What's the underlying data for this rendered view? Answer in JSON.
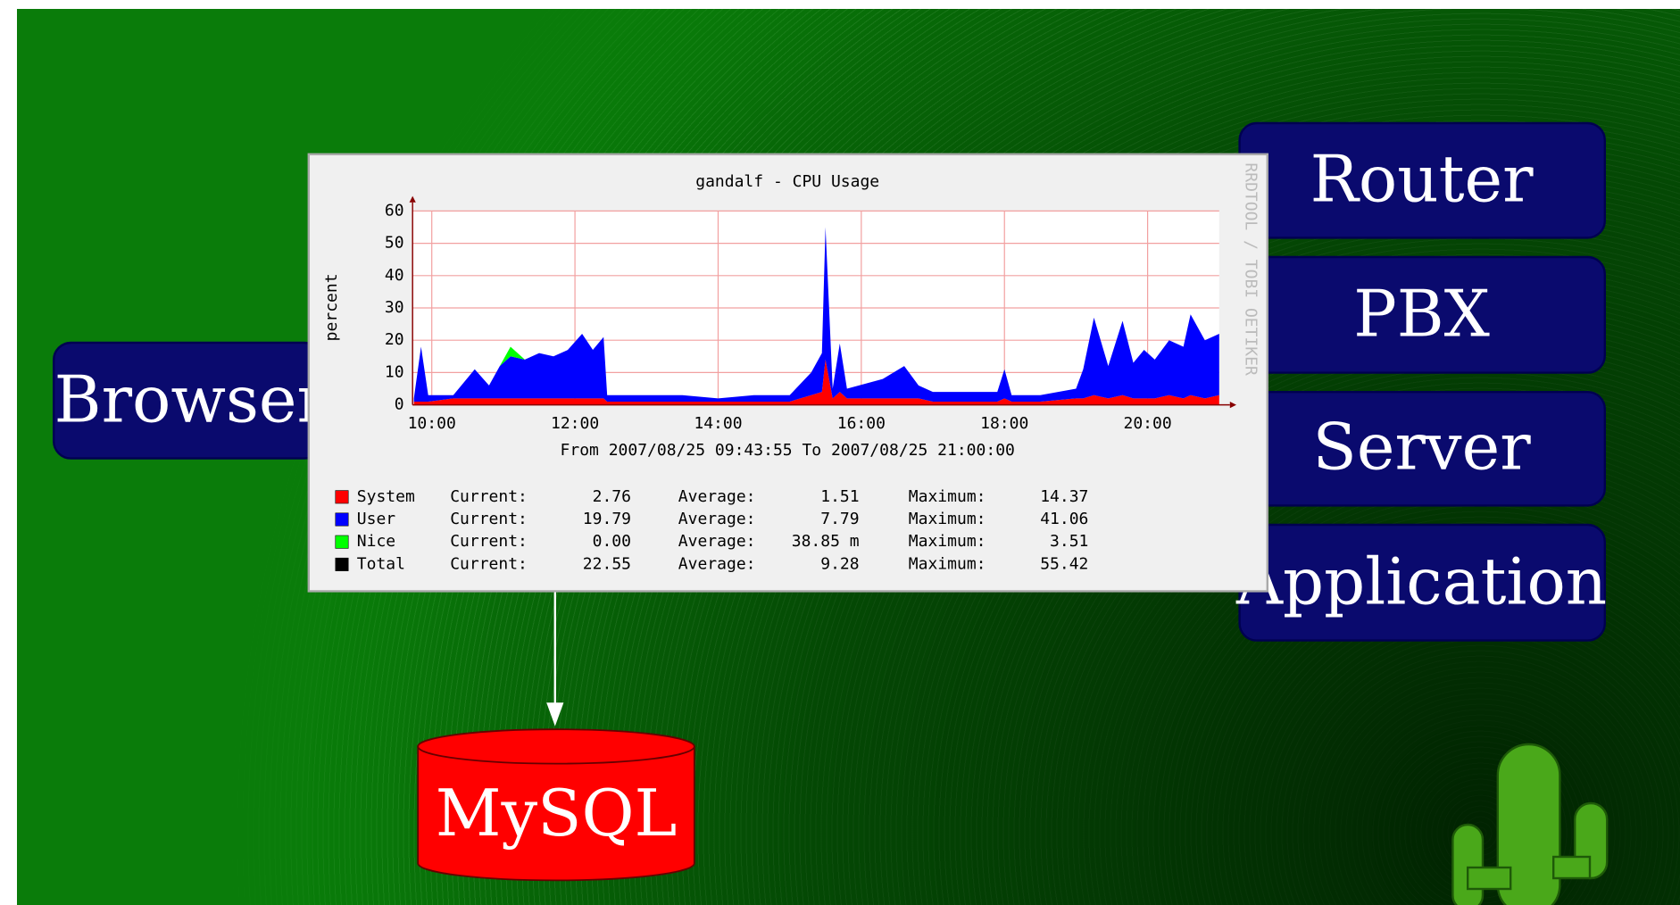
{
  "nodes": [
    {
      "label": "Browser"
    },
    {
      "label": "Router"
    },
    {
      "label": "PBX"
    },
    {
      "label": "Server"
    },
    {
      "label": "Application"
    },
    {
      "label": "MySQL"
    }
  ],
  "chart_data": {
    "type": "area",
    "title": "gandalf - CPU Usage",
    "y_label": "percent",
    "subtitle": "From 2007/08/25 09:43:55 To 2007/08/25 21:00:00",
    "watermark": "RRDTOOL / TOBI OETIKER",
    "stacked": true,
    "grid": true,
    "xlim": [
      9.7319,
      21.0
    ],
    "xticks": [
      {
        "value": 10,
        "label": "10:00"
      },
      {
        "value": 12,
        "label": "12:00"
      },
      {
        "value": 14,
        "label": "14:00"
      },
      {
        "value": 16,
        "label": "16:00"
      },
      {
        "value": 18,
        "label": "18:00"
      },
      {
        "value": 20,
        "label": "20:00"
      }
    ],
    "ylim": [
      0,
      60
    ],
    "yticks": [
      0,
      10,
      20,
      30,
      40,
      50,
      60
    ],
    "x": [
      9.75,
      9.85,
      9.95,
      10.3,
      10.6,
      10.8,
      10.95,
      11.1,
      11.3,
      11.5,
      11.7,
      11.9,
      12.1,
      12.25,
      12.4,
      12.45,
      13,
      13.5,
      14,
      14.5,
      15,
      15.3,
      15.45,
      15.5,
      15.6,
      15.7,
      15.8,
      16.3,
      16.6,
      16.8,
      17,
      17.5,
      17.9,
      18.0,
      18.1,
      18.5,
      19.0,
      19.1,
      19.25,
      19.45,
      19.65,
      19.8,
      19.95,
      20.1,
      20.3,
      20.5,
      20.6,
      20.8,
      21.0
    ],
    "series": [
      {
        "name": "System",
        "color": "#ff0000",
        "values": [
          1,
          1,
          1,
          2,
          2,
          2,
          2,
          2,
          2,
          2,
          2,
          2,
          2,
          2,
          2,
          1,
          1,
          1,
          1,
          1,
          1,
          3,
          4,
          14,
          2,
          4,
          2,
          2,
          2,
          2,
          1,
          1,
          1,
          2,
          1,
          1,
          2,
          2,
          3,
          2,
          3,
          2,
          2,
          2,
          3,
          2,
          3,
          2,
          3
        ]
      },
      {
        "name": "User",
        "color": "#0000ff",
        "values": [
          1,
          17,
          2,
          1,
          9,
          4,
          10,
          13,
          12,
          14,
          13,
          15,
          20,
          15,
          19,
          2,
          2,
          2,
          1,
          2,
          2,
          7,
          12,
          41,
          3,
          15,
          3,
          6,
          10,
          4,
          3,
          3,
          3,
          9,
          2,
          2,
          3,
          9,
          24,
          10,
          23,
          11,
          15,
          12,
          17,
          16,
          25,
          18,
          19
        ]
      },
      {
        "name": "Nice",
        "color": "#00ff00",
        "values": [
          0,
          0,
          0,
          0,
          0,
          0,
          0,
          3,
          0,
          0,
          0,
          0,
          0,
          0,
          0,
          0,
          0,
          0,
          0,
          0,
          0,
          0,
          0,
          0,
          0,
          0,
          0,
          0,
          0,
          0,
          0,
          0,
          0,
          0,
          0,
          0,
          0,
          0,
          0,
          0,
          0,
          0,
          0,
          0,
          0,
          0,
          0,
          0,
          0
        ]
      }
    ],
    "total_label": "Total",
    "total_color": "#000000",
    "stat_labels": {
      "current": "Current:",
      "average": "Average:",
      "maximum": "Maximum:"
    },
    "stats": [
      {
        "current": "2.76",
        "average": "1.51",
        "maximum": "14.37"
      },
      {
        "current": "19.79",
        "average": "7.79",
        "maximum": "41.06"
      },
      {
        "current": "0.00",
        "average": "38.85 m",
        "maximum": "3.51"
      },
      {
        "current": "22.55",
        "average": "9.28",
        "maximum": "55.42"
      }
    ]
  }
}
